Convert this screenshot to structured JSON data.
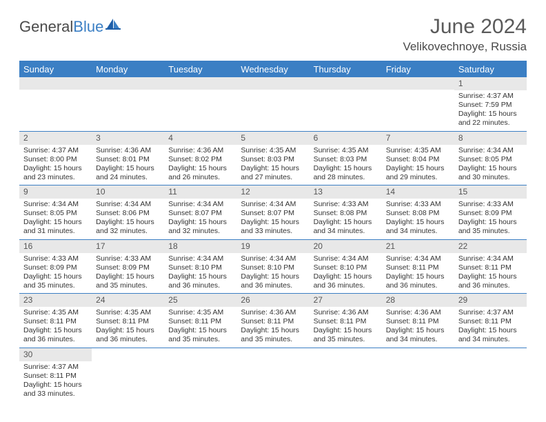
{
  "brand": {
    "part1": "General",
    "part2": "Blue"
  },
  "title": "June 2024",
  "location": "Velikovechnoye, Russia",
  "colors": {
    "header_bg": "#3b7fc4",
    "header_text": "#ffffff",
    "daynum_bg": "#e8e8e8",
    "daynum_text": "#555555",
    "rule": "#3b7fc4",
    "body_text": "#333333",
    "title_text": "#5a5a5a"
  },
  "dayNames": [
    "Sunday",
    "Monday",
    "Tuesday",
    "Wednesday",
    "Thursday",
    "Friday",
    "Saturday"
  ],
  "weeks": [
    [
      null,
      null,
      null,
      null,
      null,
      null,
      {
        "n": "1",
        "sr": "4:37 AM",
        "ss": "7:59 PM",
        "dl": "15 hours and 22 minutes."
      }
    ],
    [
      {
        "n": "2",
        "sr": "4:37 AM",
        "ss": "8:00 PM",
        "dl": "15 hours and 23 minutes."
      },
      {
        "n": "3",
        "sr": "4:36 AM",
        "ss": "8:01 PM",
        "dl": "15 hours and 24 minutes."
      },
      {
        "n": "4",
        "sr": "4:36 AM",
        "ss": "8:02 PM",
        "dl": "15 hours and 26 minutes."
      },
      {
        "n": "5",
        "sr": "4:35 AM",
        "ss": "8:03 PM",
        "dl": "15 hours and 27 minutes."
      },
      {
        "n": "6",
        "sr": "4:35 AM",
        "ss": "8:03 PM",
        "dl": "15 hours and 28 minutes."
      },
      {
        "n": "7",
        "sr": "4:35 AM",
        "ss": "8:04 PM",
        "dl": "15 hours and 29 minutes."
      },
      {
        "n": "8",
        "sr": "4:34 AM",
        "ss": "8:05 PM",
        "dl": "15 hours and 30 minutes."
      }
    ],
    [
      {
        "n": "9",
        "sr": "4:34 AM",
        "ss": "8:05 PM",
        "dl": "15 hours and 31 minutes."
      },
      {
        "n": "10",
        "sr": "4:34 AM",
        "ss": "8:06 PM",
        "dl": "15 hours and 32 minutes."
      },
      {
        "n": "11",
        "sr": "4:34 AM",
        "ss": "8:07 PM",
        "dl": "15 hours and 32 minutes."
      },
      {
        "n": "12",
        "sr": "4:34 AM",
        "ss": "8:07 PM",
        "dl": "15 hours and 33 minutes."
      },
      {
        "n": "13",
        "sr": "4:33 AM",
        "ss": "8:08 PM",
        "dl": "15 hours and 34 minutes."
      },
      {
        "n": "14",
        "sr": "4:33 AM",
        "ss": "8:08 PM",
        "dl": "15 hours and 34 minutes."
      },
      {
        "n": "15",
        "sr": "4:33 AM",
        "ss": "8:09 PM",
        "dl": "15 hours and 35 minutes."
      }
    ],
    [
      {
        "n": "16",
        "sr": "4:33 AM",
        "ss": "8:09 PM",
        "dl": "15 hours and 35 minutes."
      },
      {
        "n": "17",
        "sr": "4:33 AM",
        "ss": "8:09 PM",
        "dl": "15 hours and 35 minutes."
      },
      {
        "n": "18",
        "sr": "4:34 AM",
        "ss": "8:10 PM",
        "dl": "15 hours and 36 minutes."
      },
      {
        "n": "19",
        "sr": "4:34 AM",
        "ss": "8:10 PM",
        "dl": "15 hours and 36 minutes."
      },
      {
        "n": "20",
        "sr": "4:34 AM",
        "ss": "8:10 PM",
        "dl": "15 hours and 36 minutes."
      },
      {
        "n": "21",
        "sr": "4:34 AM",
        "ss": "8:11 PM",
        "dl": "15 hours and 36 minutes."
      },
      {
        "n": "22",
        "sr": "4:34 AM",
        "ss": "8:11 PM",
        "dl": "15 hours and 36 minutes."
      }
    ],
    [
      {
        "n": "23",
        "sr": "4:35 AM",
        "ss": "8:11 PM",
        "dl": "15 hours and 36 minutes."
      },
      {
        "n": "24",
        "sr": "4:35 AM",
        "ss": "8:11 PM",
        "dl": "15 hours and 36 minutes."
      },
      {
        "n": "25",
        "sr": "4:35 AM",
        "ss": "8:11 PM",
        "dl": "15 hours and 35 minutes."
      },
      {
        "n": "26",
        "sr": "4:36 AM",
        "ss": "8:11 PM",
        "dl": "15 hours and 35 minutes."
      },
      {
        "n": "27",
        "sr": "4:36 AM",
        "ss": "8:11 PM",
        "dl": "15 hours and 35 minutes."
      },
      {
        "n": "28",
        "sr": "4:36 AM",
        "ss": "8:11 PM",
        "dl": "15 hours and 34 minutes."
      },
      {
        "n": "29",
        "sr": "4:37 AM",
        "ss": "8:11 PM",
        "dl": "15 hours and 34 minutes."
      }
    ],
    [
      {
        "n": "30",
        "sr": "4:37 AM",
        "ss": "8:11 PM",
        "dl": "15 hours and 33 minutes."
      },
      null,
      null,
      null,
      null,
      null,
      null
    ]
  ],
  "labels": {
    "sunrise": "Sunrise:",
    "sunset": "Sunset:",
    "daylight": "Daylight:"
  }
}
